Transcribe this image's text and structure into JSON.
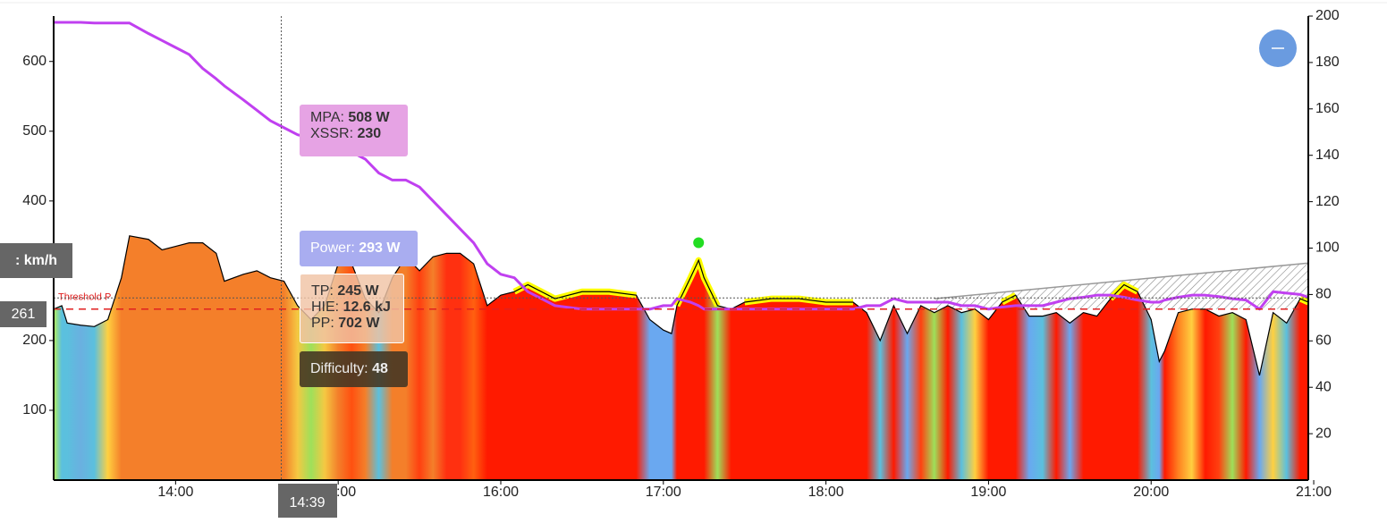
{
  "chart_data": {
    "type": "area",
    "x": [
      "13:15",
      "13:18",
      "13:20",
      "13:25",
      "13:30",
      "13:35",
      "13:40",
      "13:43",
      "13:50",
      "13:55",
      "14:00",
      "14:05",
      "14:10",
      "14:15",
      "14:18",
      "14:25",
      "14:30",
      "14:35",
      "14:40",
      "14:45",
      "14:50",
      "14:55",
      "15:00",
      "15:05",
      "15:10",
      "15:15",
      "15:20",
      "15:25",
      "15:30",
      "15:35",
      "15:40",
      "15:45",
      "15:50",
      "15:55",
      "16:00",
      "16:05",
      "16:10",
      "16:15",
      "16:20",
      "16:30",
      "16:40",
      "16:50",
      "16:55",
      "17:00",
      "17:03",
      "17:05",
      "17:10",
      "17:13",
      "17:15",
      "17:20",
      "17:25",
      "17:30",
      "17:40",
      "17:50",
      "18:00",
      "18:10",
      "18:15",
      "18:20",
      "18:25",
      "18:30",
      "18:35",
      "18:40",
      "18:45",
      "18:50",
      "18:55",
      "19:00",
      "19:05",
      "19:10",
      "19:15",
      "19:20",
      "19:25",
      "19:30",
      "19:35",
      "19:40",
      "19:45",
      "19:50",
      "19:55",
      "20:00",
      "20:03",
      "20:05",
      "20:10",
      "20:15",
      "20:20",
      "20:25",
      "20:30",
      "20:35",
      "20:40",
      "20:45",
      "20:50",
      "20:55",
      "20:58"
    ],
    "series": [
      {
        "type": "area",
        "color": "#000000",
        "values": [
          245,
          250,
          225,
          222,
          220,
          230,
          290,
          350,
          345,
          330,
          335,
          340,
          340,
          325,
          285,
          295,
          300,
          290,
          285,
          250,
          230,
          250,
          310,
          310,
          260,
          240,
          290,
          320,
          300,
          320,
          325,
          325,
          310,
          250,
          265,
          270,
          280,
          270,
          260,
          270,
          270,
          265,
          230,
          215,
          210,
          250,
          290,
          315,
          290,
          250,
          245,
          255,
          260,
          260,
          255,
          255,
          240,
          200,
          250,
          210,
          250,
          240,
          250,
          240,
          245,
          230,
          255,
          265,
          235,
          235,
          240,
          225,
          240,
          235,
          260,
          280,
          270,
          230,
          170,
          185,
          240,
          245,
          245,
          235,
          240,
          230,
          150,
          240,
          225,
          260,
          255
        ],
        "colors": [
          "#b8f05a",
          "#5bc0de",
          "#5bc0de",
          "#6ab0e0",
          "#5bc0de",
          "#ffd040",
          "#f47f2a",
          "#f47f2a",
          "#f47f2a",
          "#f47f2a",
          "#f47f2a",
          "#f47f2a",
          "#f47f2a",
          "#f47f2a",
          "#f47f2a",
          "#f47f2a",
          "#f47f2a",
          "#f47f2a",
          "#f47f2a",
          "#f5c842",
          "#9ee05a",
          "#f5c842",
          "#f47f2a",
          "#ff5010",
          "#f47f2a",
          "#5bc0de",
          "#f47f2a",
          "#f47f2a",
          "#ff4010",
          "#f47f2a",
          "#ff3010",
          "#ff3010",
          "#ff6010",
          "#ff1a00",
          "#ff1a00",
          "#ff1a00",
          "#ff1a00",
          "#ff1a00",
          "#ff1a00",
          "#ff1a00",
          "#ff1a00",
          "#ff1a00",
          "#6aa8f0",
          "#6aa8f0",
          "#6aa8f0",
          "#ff1a00",
          "#ff1a00",
          "#ff1a00",
          "#ff1a00",
          "#9ee05a",
          "#ff1a00",
          "#ff1a00",
          "#ff1a00",
          "#ff1a00",
          "#ff1a00",
          "#ff1a00",
          "#ff1a00",
          "#5bc0de",
          "#ff1a00",
          "#6aa8f0",
          "#ff4010",
          "#9ee05a",
          "#ff1a00",
          "#5bc0de",
          "#ffd040",
          "#ff1a00",
          "#ff1a00",
          "#ff1a00",
          "#6aa8f0",
          "#5bc0de",
          "#ff1a00",
          "#6aa8f0",
          "#ff1a00",
          "#ff1a00",
          "#ff1a00",
          "#ff1a00",
          "#ff1a00",
          "#5bc0de",
          "#6aa8f0",
          "#ff1a00",
          "#ff8020",
          "#ffd040",
          "#ff1a00",
          "#ff4010",
          "#9ee05a",
          "#ff1a00",
          "#6aa8f0",
          "#ffd040",
          "#5bc0de",
          "#ff1a00",
          "#ff1a00"
        ]
      },
      {
        "type": "line",
        "color": "#c040f0",
        "values": [
          656,
          656,
          656,
          656,
          655,
          655,
          655,
          655,
          640,
          630,
          620,
          610,
          590,
          575,
          565,
          545,
          530,
          515,
          505,
          495,
          490,
          485,
          480,
          470,
          460,
          440,
          430,
          430,
          420,
          400,
          380,
          360,
          340,
          310,
          295,
          290,
          270,
          260,
          250,
          245,
          245,
          245,
          245,
          250,
          250,
          260,
          255,
          250,
          245,
          245,
          245,
          245,
          245,
          245,
          245,
          245,
          250,
          250,
          260,
          255,
          255,
          255,
          255,
          250,
          250,
          245,
          248,
          250,
          250,
          250,
          255,
          260,
          262,
          265,
          265,
          262,
          258,
          255,
          255,
          258,
          262,
          265,
          265,
          263,
          260,
          258,
          245,
          270,
          268,
          266,
          262
        ]
      }
    ],
    "threshold": {
      "value": 245,
      "label": "Threshold P",
      "color": "#e02020"
    },
    "trend": {
      "x": [
        "18:40",
        "20:58"
      ],
      "values": [
        260,
        311
      ],
      "color": "#999999"
    },
    "peak": {
      "x": "17:13",
      "value": 330,
      "color": "#22dd22"
    },
    "highlight_color": "#ffff00",
    "xlim": [
      "13:15",
      "20:58"
    ],
    "xticks": [
      "14:00",
      "15:00",
      "16:00",
      "17:00",
      "18:00",
      "19:00",
      "20:00",
      "21:00"
    ],
    "ylim": [
      0,
      665
    ],
    "yticks": [
      100,
      200,
      300,
      400,
      500,
      600
    ],
    "y2lim": [
      0,
      200
    ],
    "y2ticks": [
      20,
      40,
      60,
      80,
      100,
      120,
      140,
      160,
      180,
      200
    ],
    "cursor": {
      "x": "14:39",
      "y": 261,
      "unit": ": km/h"
    },
    "tooltips": {
      "mpa": [
        {
          "label": "MPA: ",
          "value": "508 W"
        },
        {
          "label": "XSSR: ",
          "value": "230"
        }
      ],
      "power": [
        {
          "label": "Power: ",
          "value": "293 W"
        }
      ],
      "tp": [
        {
          "label": "TP: ",
          "value": "245 W"
        },
        {
          "label": "HIE: ",
          "value": "12.6 kJ"
        },
        {
          "label": "PP: ",
          "value": "702 W"
        }
      ],
      "difficulty": [
        {
          "label": "Difficulty: ",
          "value": "48"
        }
      ]
    }
  }
}
